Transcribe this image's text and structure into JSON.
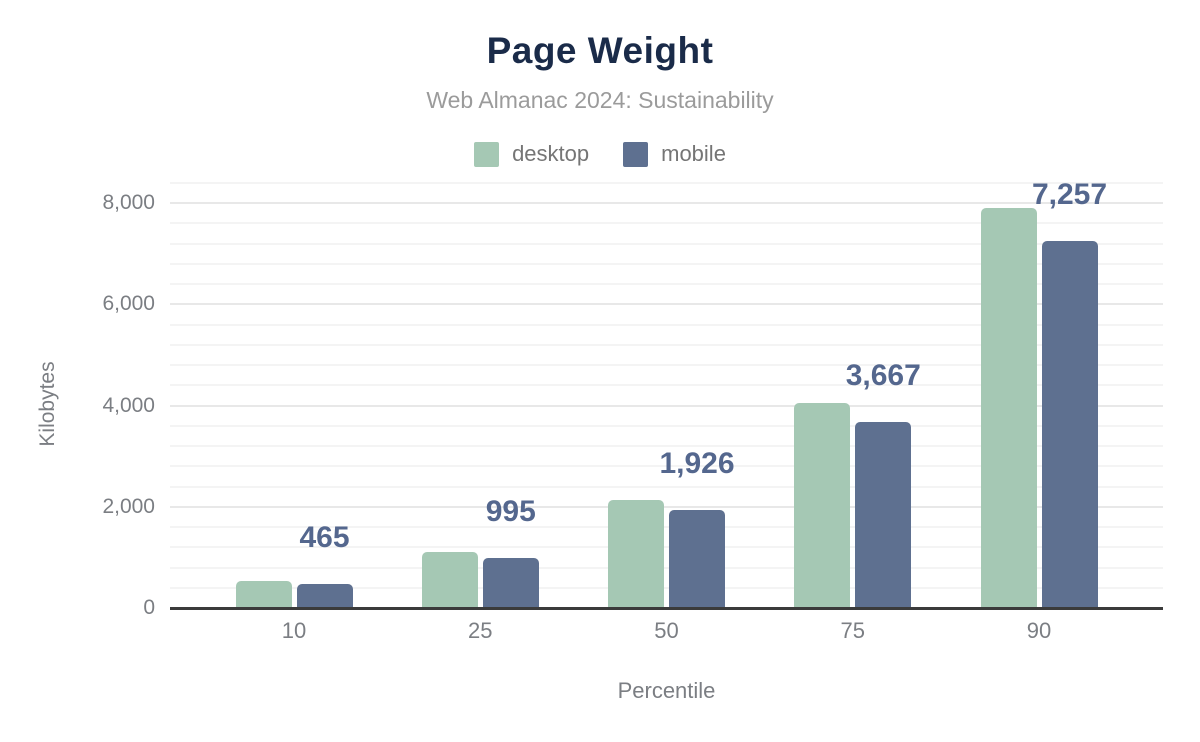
{
  "header": {
    "title": "Page Weight",
    "subtitle": "Web Almanac 2024: Sustainability"
  },
  "legend": [
    {
      "label": "desktop",
      "color": "#a5c8b4"
    },
    {
      "label": "mobile",
      "color": "#5e7090"
    }
  ],
  "chart_data": {
    "type": "bar",
    "title": "Page Weight",
    "subtitle": "Web Almanac 2024: Sustainability",
    "xlabel": "Percentile",
    "ylabel": "Kilobytes",
    "categories": [
      "10",
      "25",
      "50",
      "75",
      "90"
    ],
    "series": [
      {
        "name": "desktop",
        "color": "#a5c8b4",
        "values": [
          530,
          1105,
          2135,
          4055,
          7910
        ]
      },
      {
        "name": "mobile",
        "color": "#5e7090",
        "values": [
          465,
          995,
          1926,
          3667,
          7257
        ]
      }
    ],
    "value_labels": [
      "465",
      "995",
      "1,926",
      "3,667",
      "7,257"
    ],
    "value_labels_series": "mobile",
    "ylim": [
      0,
      8400
    ],
    "ytick_values": [
      0,
      2000,
      4000,
      6000,
      8000
    ],
    "ytick_labels": [
      "0",
      "2,000",
      "4,000",
      "6,000",
      "8,000"
    ],
    "grid": {
      "minor_step": 400,
      "major_step": 2000,
      "visible": true
    },
    "legend_position": "top"
  },
  "colors": {
    "title": "#1a2b49",
    "subtitle": "#9b9b9b",
    "legend_text": "#757575",
    "axis_text": "#7b7e83",
    "value_label": "#54678e",
    "baseline": "#3b3b3b",
    "grid_minor": "#f4f4f4",
    "grid_major": "#e8e8e8",
    "background": "#ffffff"
  }
}
